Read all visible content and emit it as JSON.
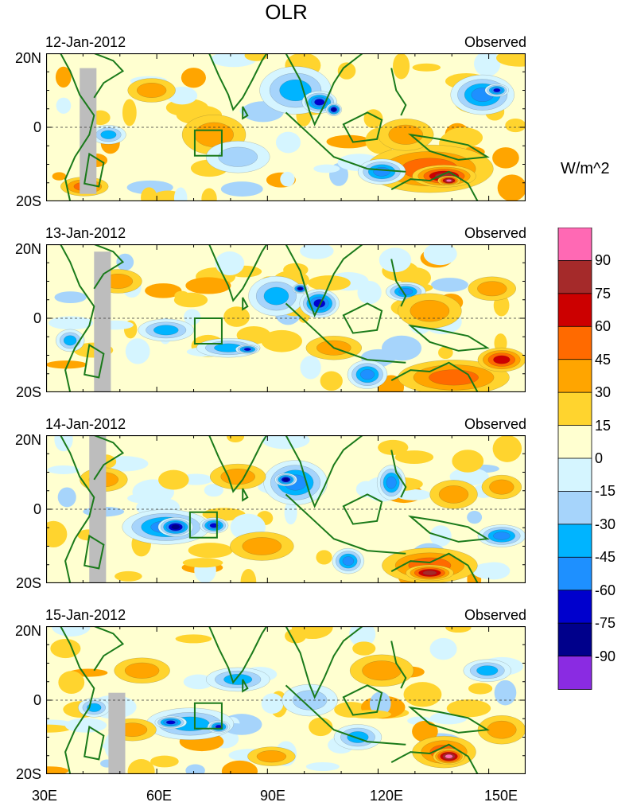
{
  "title": "OLR",
  "colorbar": {
    "unit": "W/m^2",
    "labels": [
      "90",
      "75",
      "60",
      "45",
      "30",
      "15",
      "0",
      "-15",
      "-30",
      "-45",
      "-60",
      "-75",
      "-90"
    ],
    "colors": [
      "#ff69b4",
      "#a52a2a",
      "#cc0000",
      "#ff6a00",
      "#ffa500",
      "#ffd42e",
      "#ffffd0",
      "#d5f5ff",
      "#a6d4fb",
      "#00b4ff",
      "#1e90ff",
      "#0000cd",
      "#00008b",
      "#8a2be2"
    ]
  },
  "panels": [
    {
      "date": "12-Jan-2012",
      "tag": "Observed"
    },
    {
      "date": "13-Jan-2012",
      "tag": "Observed"
    },
    {
      "date": "14-Jan-2012",
      "tag": "Observed"
    },
    {
      "date": "15-Jan-2012",
      "tag": "Observed"
    }
  ],
  "y_labels": {
    "north": "20N",
    "equator": "0",
    "south": "20S"
  },
  "x_labels": [
    "30E",
    "60E",
    "90E",
    "120E",
    "150E"
  ],
  "colors": {
    "coast": "#1a7a1a",
    "missing": "#bdbdbd",
    "box": "#1a7a1a"
  }
}
